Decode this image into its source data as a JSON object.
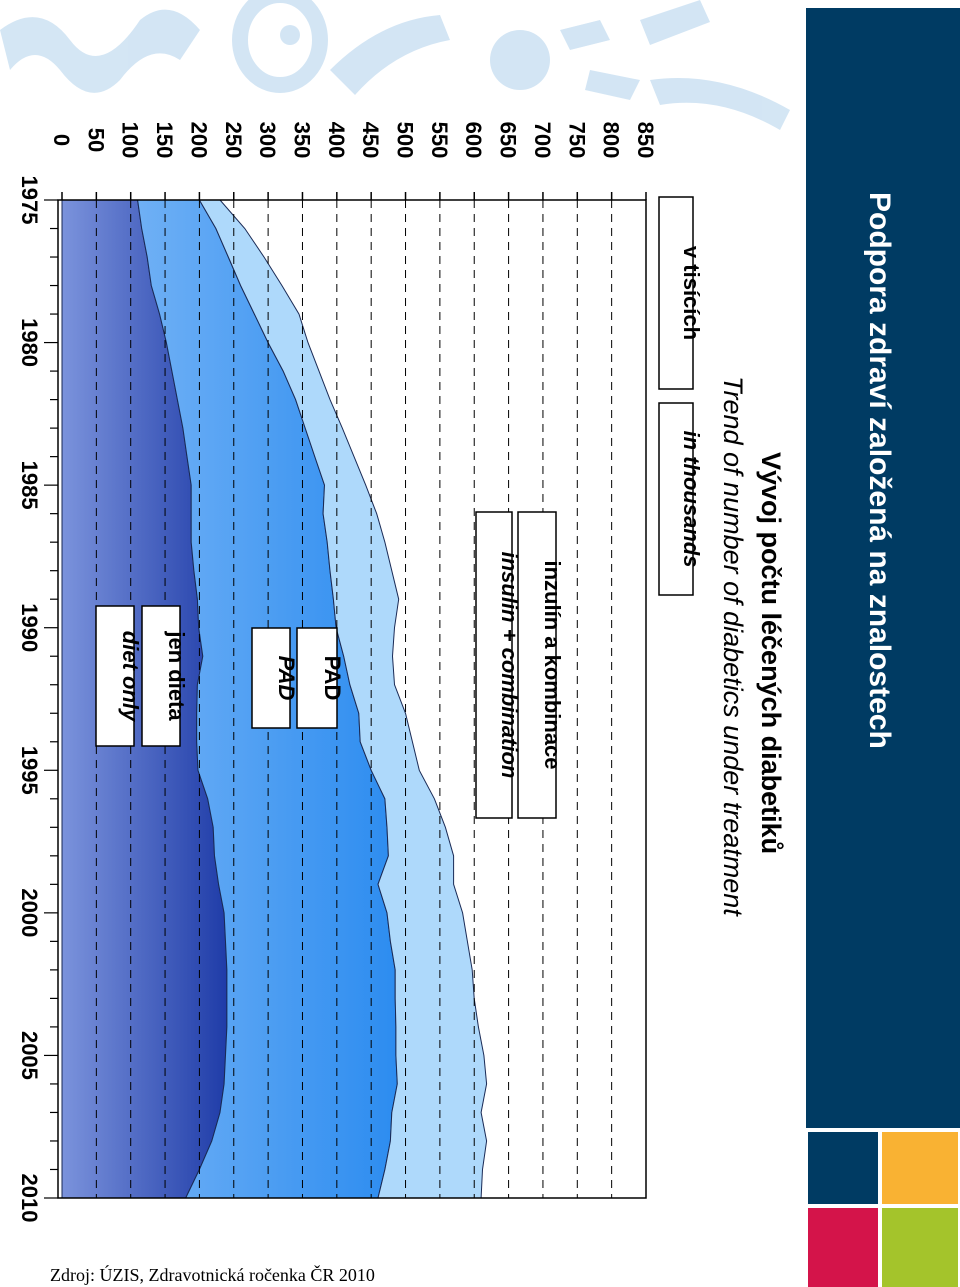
{
  "header": {
    "title": "Podpora zdraví založená na znalostech",
    "band_color": "#003b63",
    "square_colors": [
      "#003b63",
      "#f9b233",
      "#d4144a",
      "#a4c42b"
    ]
  },
  "source": "Zdroj: ÚZIS, Zdravotnická ročenka ČR 2010",
  "decor": {
    "logo_color": "#cfe3f3"
  },
  "chart_data": {
    "type": "area",
    "stacked": true,
    "orientation": "rotated-90-clockwise",
    "title": "Vývoj počtu léčených diabetiků",
    "subtitle": "Trend of number of diabetics under treatment",
    "ylim": [
      0,
      850
    ],
    "y_ticks": [
      "0",
      "50",
      "100",
      "150",
      "200",
      "250",
      "300",
      "350",
      "400",
      "450",
      "500",
      "550",
      "600",
      "650",
      "700",
      "750",
      "800",
      "850"
    ],
    "x_labels": [
      "1975",
      "1980",
      "1985",
      "1990",
      "1995",
      "2000",
      "2005",
      "2010"
    ],
    "unit_boxes": [
      {
        "key": "cz",
        "text": "v tisících",
        "italic": false
      },
      {
        "key": "en",
        "text": "in thousands",
        "italic": true
      }
    ],
    "x": [
      1975,
      1976,
      1977,
      1978,
      1979,
      1980,
      1981,
      1982,
      1983,
      1984,
      1985,
      1986,
      1987,
      1988,
      1989,
      1990,
      1991,
      1992,
      1993,
      1994,
      1995,
      1996,
      1997,
      1998,
      1999,
      2000,
      2001,
      2002,
      2003,
      2004,
      2005,
      2006,
      2007,
      2008,
      2009,
      2010
    ],
    "series": [
      {
        "name_cz": "jen dieta",
        "name_en": "diet only",
        "color": "#7b93dc",
        "values": [
          110,
          116,
          124,
          130,
          142,
          152,
          160,
          168,
          176,
          182,
          188,
          188,
          188,
          192,
          197,
          199,
          205,
          197,
          196,
          196,
          198,
          212,
          220,
          222,
          228,
          236,
          238,
          240,
          240,
          240,
          238,
          236,
          230,
          218,
          200,
          180
        ]
      },
      {
        "name_cz": "PAD",
        "name_en": "PAD",
        "color": "#6fb0f5",
        "values": [
          90,
          108,
          118,
          130,
          138,
          148,
          162,
          172,
          178,
          186,
          194,
          192,
          198,
          198,
          198,
          200,
          205,
          222,
          236,
          238,
          252,
          258,
          253,
          253,
          232,
          237,
          240,
          245,
          245,
          246,
          248,
          252,
          250,
          260,
          270,
          280
        ]
      },
      {
        "name_cz": "inzulín a kombinace",
        "name_en": "insulin + combination",
        "color": "#aed9fb",
        "values": [
          30,
          42,
          52,
          60,
          65,
          58,
          52,
          50,
          54,
          57,
          60,
          78,
          84,
          90,
          95,
          85,
          71,
          65,
          68,
          76,
          70,
          72,
          85,
          95,
          110,
          110,
          112,
          112,
          115,
          120,
          128,
          130,
          130,
          140,
          142,
          150
        ]
      }
    ]
  }
}
